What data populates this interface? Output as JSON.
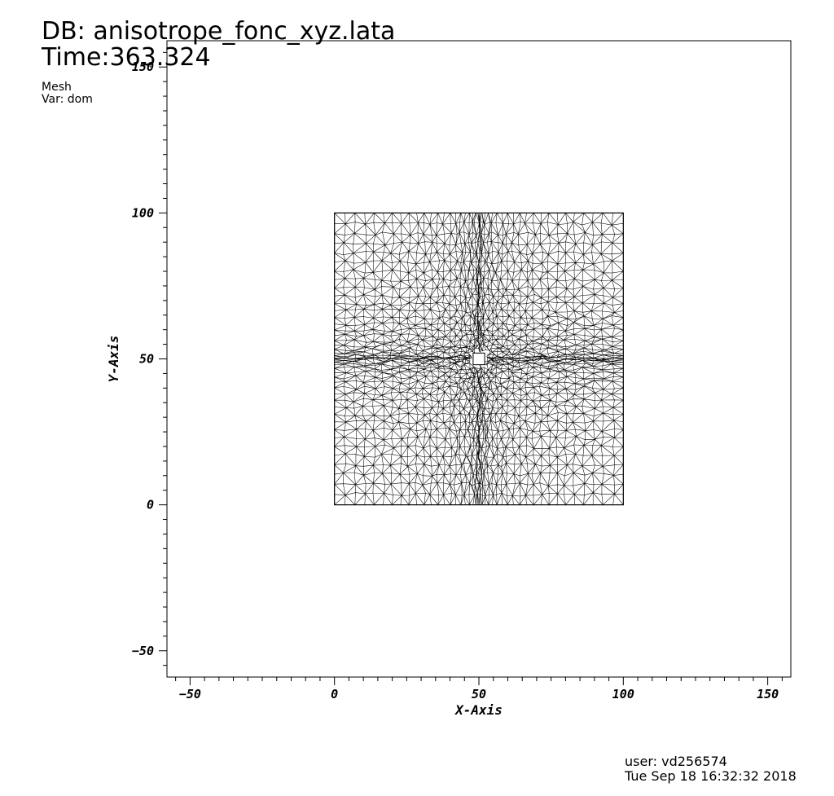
{
  "header": {
    "db_line": "DB: anisotrope_fonc_xyz.lata",
    "time_line": "Time:363.324",
    "plot_kind": "Mesh",
    "var_line": "Var: dom"
  },
  "footer": {
    "user_line": "user: vd256574",
    "date_line": "Tue Sep 18 16:32:32 2018"
  },
  "chart_data": {
    "type": "mesh",
    "xlabel": "X-Axis",
    "ylabel": "Y-Axis",
    "xlim": [
      -58,
      158
    ],
    "ylim": [
      -59,
      159
    ],
    "x_major_ticks": [
      -50,
      0,
      50,
      100,
      150
    ],
    "y_major_ticks": [
      -50,
      0,
      50,
      100,
      150
    ],
    "x_tick_labels": [
      "−50",
      "0",
      "50",
      "100",
      "150"
    ],
    "y_tick_labels": [
      "−50",
      "0",
      "50",
      "100",
      "150"
    ],
    "minor_tick_step": 5,
    "domain": {
      "x": [
        0,
        100
      ],
      "y": [
        0,
        100
      ]
    },
    "hole": {
      "x": [
        48,
        52
      ],
      "y": [
        48,
        52
      ]
    },
    "mesh_refinement_center": [
      50,
      50
    ],
    "grid": false,
    "line_color": "#000000",
    "background": "#ffffff"
  }
}
